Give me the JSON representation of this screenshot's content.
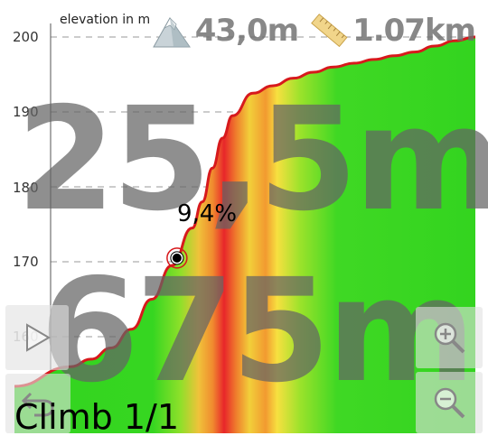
{
  "chart": {
    "y_axis_label": "elevation in m",
    "y_ticks": [
      "200",
      "190",
      "180",
      "170",
      "160"
    ],
    "current_grade": "9,4%"
  },
  "overlay": {
    "elevation_gain": "43,0m",
    "distance": "1.07km",
    "big_elevation": "25,5m",
    "big_distance": "675m",
    "climb_label": "Climb 1/1"
  },
  "icons": {
    "mountain": "mountain-icon",
    "ruler": "ruler-icon",
    "play": "play-icon",
    "back": "back-arrow-icon",
    "zoom_in": "zoom-in-icon",
    "zoom_out": "zoom-out-icon"
  },
  "colors": {
    "profile_line": "#d7191c",
    "flat_fill": "#3ddc2a",
    "steep_fill": "#e8262a",
    "grid": "#9a9a9a"
  },
  "chart_data": {
    "type": "area",
    "ylabel": "elevation in m",
    "ylim": [
      158,
      201
    ],
    "y_ticks": [
      160,
      170,
      180,
      190,
      200
    ],
    "grid": true,
    "series": [
      {
        "values": [
          [
            0,
            155.0
          ],
          [
            40,
            156.0
          ],
          [
            80,
            157.0
          ],
          [
            120,
            158.5
          ],
          [
            160,
            161.0
          ],
          [
            200,
            165.0
          ],
          [
            240,
            169.5
          ],
          [
            280,
            174.5
          ],
          [
            300,
            178.0
          ],
          [
            320,
            182.5
          ],
          [
            340,
            186.5
          ],
          [
            360,
            189.5
          ],
          [
            400,
            192.5
          ],
          [
            440,
            193.5
          ],
          [
            480,
            194.5
          ],
          [
            520,
            195.3
          ],
          [
            560,
            196.0
          ],
          [
            600,
            196.5
          ],
          [
            640,
            197.0
          ],
          [
            680,
            197.5
          ],
          [
            720,
            198.0
          ],
          [
            760,
            198.8
          ],
          [
            800,
            199.5
          ],
          [
            840,
            200.0
          ]
        ]
      }
    ],
    "marker": {
      "x": 250,
      "y": 170.5,
      "label": "9,4%"
    }
  }
}
